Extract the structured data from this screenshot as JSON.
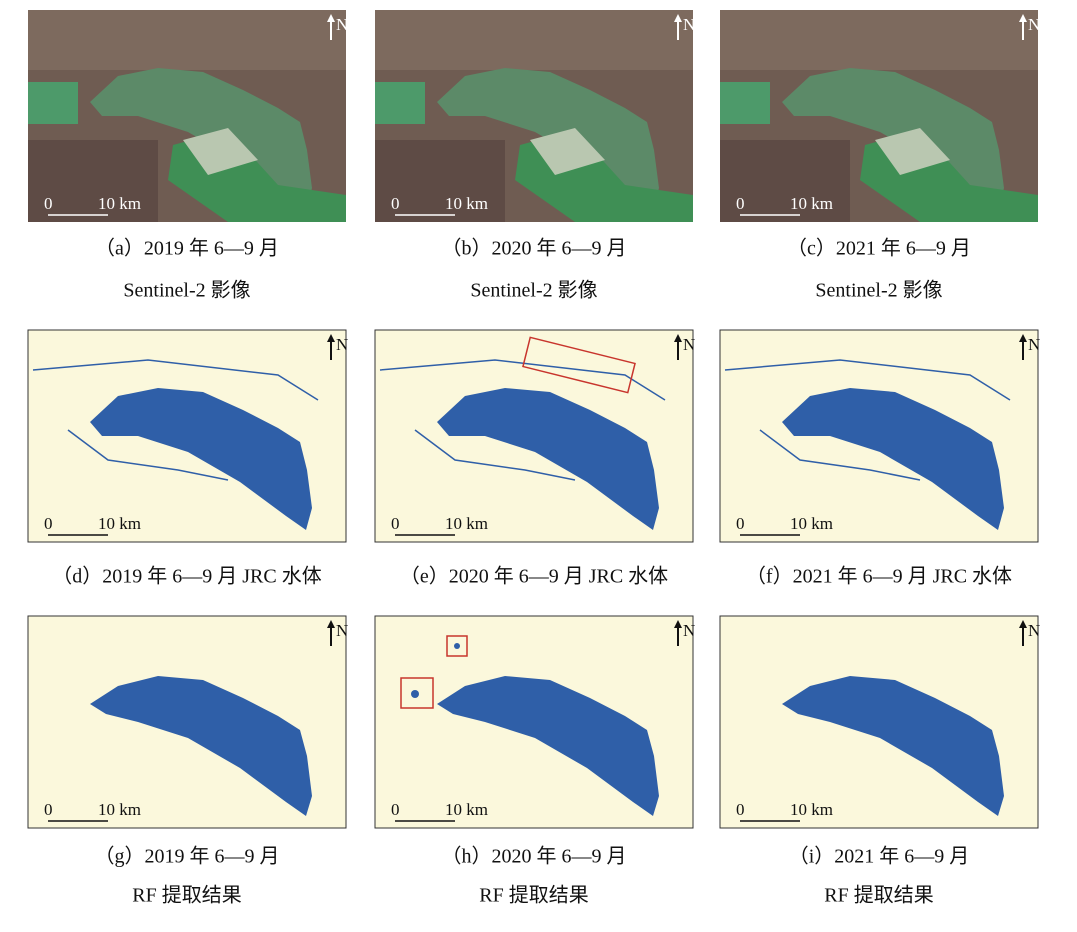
{
  "panels": [
    {
      "north": "N",
      "scale_start": "0",
      "scale_end": "10 km",
      "caption": [
        "（a）2019 年 6—9 月",
        "Sentinel-2 影像"
      ]
    },
    {
      "north": "N",
      "scale_start": "0",
      "scale_end": "10 km",
      "caption": [
        "（b）2020 年 6—9 月",
        "Sentinel-2 影像"
      ]
    },
    {
      "north": "N",
      "scale_start": "0",
      "scale_end": "10 km",
      "caption": [
        "（c）2021 年 6—9 月",
        "Sentinel-2 影像"
      ]
    },
    {
      "north": "N",
      "scale_start": "0",
      "scale_end": "10 km",
      "caption": [
        "（d）2019 年 6—9 月 JRC 水体"
      ]
    },
    {
      "north": "N",
      "scale_start": "0",
      "scale_end": "10 km",
      "caption": [
        "（e）2020 年 6—9 月 JRC 水体"
      ]
    },
    {
      "north": "N",
      "scale_start": "0",
      "scale_end": "10 km",
      "caption": [
        "（f）2021 年 6—9 月 JRC 水体"
      ]
    },
    {
      "north": "N",
      "scale_start": "0",
      "scale_end": "10 km",
      "caption": [
        "（g）2019 年 6—9 月",
        "RF 提取结果"
      ]
    },
    {
      "north": "N",
      "scale_start": "0",
      "scale_end": "10 km",
      "caption": [
        "（h）2020 年 6—9 月",
        "RF 提取结果"
      ]
    },
    {
      "north": "N",
      "scale_start": "0",
      "scale_end": "10 km",
      "caption": [
        "（i）2021 年 6—9 月",
        "RF 提取结果"
      ]
    }
  ]
}
